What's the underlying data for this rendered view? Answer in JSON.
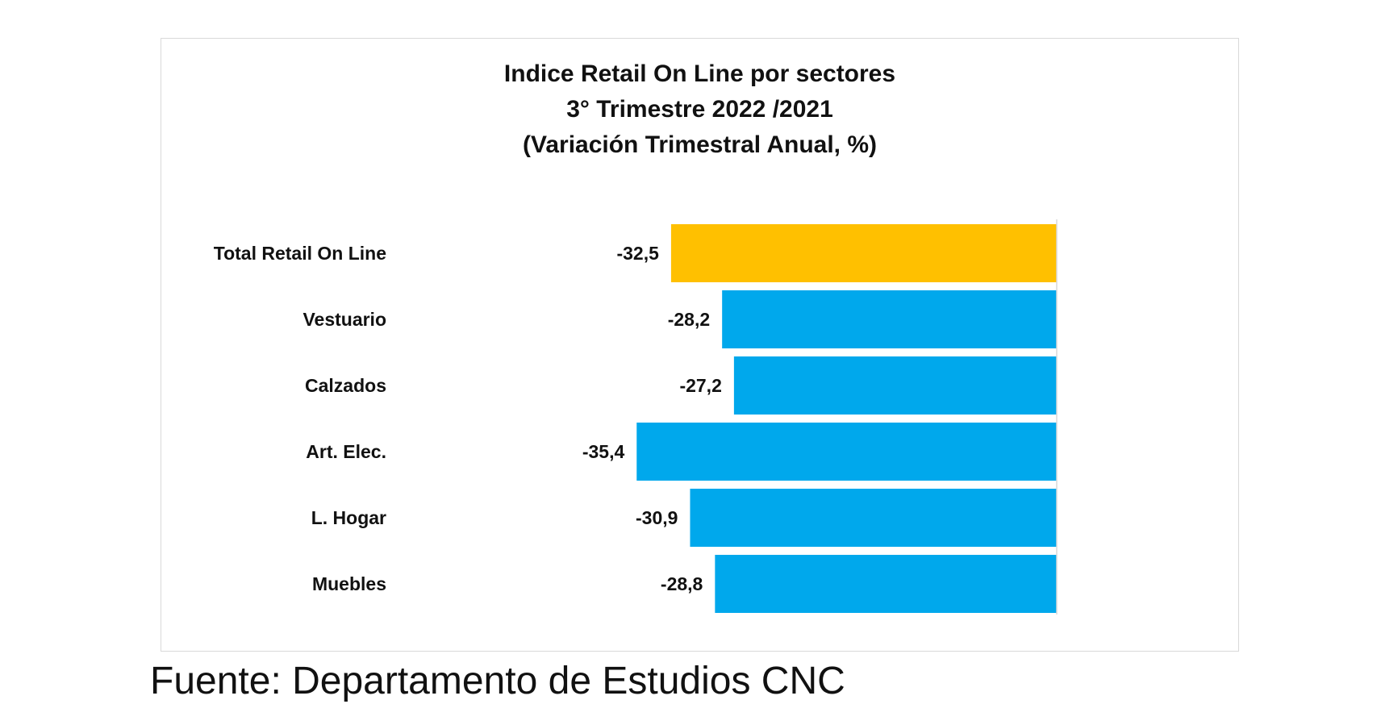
{
  "chart_data": {
    "type": "bar",
    "orientation": "horizontal",
    "title_lines": [
      "Indice Retail On Line por sectores",
      "3° Trimestre 2022 /2021",
      "(Variación Trimestral Anual, %)"
    ],
    "categories": [
      "Total Retail On Line",
      "Vestuario",
      "Calzados",
      "Art. Elec.",
      "L. Hogar",
      "Muebles"
    ],
    "values": [
      -32.5,
      -28.2,
      -27.2,
      -35.4,
      -30.9,
      -28.8
    ],
    "value_labels": [
      "-32,5",
      "-28,2",
      "-27,2",
      "-35,4",
      "-30,9",
      "-28,8"
    ],
    "bar_colors": [
      "#FFC000",
      "#00A8EC",
      "#00A8EC",
      "#00A8EC",
      "#00A8EC",
      "#00A8EC"
    ],
    "xlabel": "",
    "ylabel": "",
    "grid": false,
    "legend": "none"
  },
  "source_note": "Fuente: Departamento de Estudios CNC"
}
